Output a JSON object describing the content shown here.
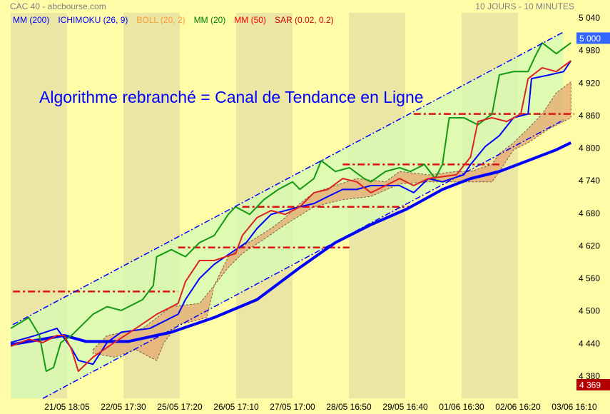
{
  "header": {
    "title": "CAC 40 - abcbourse.com",
    "period": "10 JOURS - 10 MINUTES"
  },
  "legend": [
    {
      "label": "MM (200)",
      "color": "#0000ff"
    },
    {
      "label": "ICHIMOKU (26, 9)",
      "color": "#0000ff"
    },
    {
      "label": "BOLL (20, 2)",
      "color": "#ff9933"
    },
    {
      "label": "MM (20)",
      "color": "#008000"
    },
    {
      "label": "MM (50)",
      "color": "#ff0000"
    },
    {
      "label": "SAR (0.02, 0.2)",
      "color": "#cc0000"
    }
  ],
  "chart_data": {
    "type": "line",
    "annotation": "Algorithme rebranché = Canal de Tendance en Ligne",
    "annotation_color": "#0000ff",
    "xlabels": [
      "21/05 18:05",
      "22/05 17:30",
      "25/05 17:20",
      "26/05 17:10",
      "27/05 17:00",
      "28/05 16:50",
      "29/05 16:40",
      "01/06 16:30",
      "02/06 16:20",
      "03/06 16:10"
    ],
    "yticks": [
      5040,
      4980,
      4920,
      4860,
      4800,
      4740,
      4680,
      4620,
      4560,
      4500,
      4440,
      4380
    ],
    "ylim": [
      4340,
      5060
    ],
    "last_price": {
      "label": "5 000",
      "value": 5000,
      "color": "#3366ff"
    },
    "low_price": {
      "label": "4 369",
      "value": 4369,
      "color": "#b30000"
    },
    "channel": {
      "upper": [
        [
          0.04,
          4475
        ],
        [
          9.81,
          5014
        ]
      ],
      "lower": [
        [
          0.57,
          4339
        ],
        [
          9.81,
          4852
        ]
      ],
      "fill": "#d4fbb4",
      "line_color": "#0000ff"
    },
    "levels": [
      {
        "from": 0.04,
        "to": 2.97,
        "value": 4536
      },
      {
        "from": 2.97,
        "to": 6.01,
        "value": 4617
      },
      {
        "from": 4.11,
        "to": 7.09,
        "value": 4692
      },
      {
        "from": 5.89,
        "to": 8.67,
        "value": 4770
      },
      {
        "from": 7.15,
        "to": 10.0,
        "value": 4863
      }
    ],
    "cloud": {
      "upper": [
        [
          1.46,
          4429
        ],
        [
          1.71,
          4455
        ],
        [
          2.34,
          4468
        ],
        [
          2.85,
          4508
        ],
        [
          3.35,
          4514
        ],
        [
          3.61,
          4547
        ],
        [
          3.86,
          4600
        ],
        [
          4.11,
          4619
        ],
        [
          4.62,
          4652
        ],
        [
          4.87,
          4672
        ],
        [
          5.13,
          4698
        ],
        [
          5.38,
          4718
        ],
        [
          5.76,
          4731
        ],
        [
          6.14,
          4744
        ],
        [
          6.65,
          4738
        ],
        [
          6.9,
          4757
        ],
        [
          7.41,
          4751
        ],
        [
          7.91,
          4757
        ],
        [
          8.16,
          4757
        ],
        [
          8.54,
          4770
        ],
        [
          8.67,
          4790
        ],
        [
          8.92,
          4810
        ],
        [
          9.18,
          4836
        ],
        [
          9.43,
          4863
        ],
        [
          9.68,
          4902
        ],
        [
          9.94,
          4922
        ]
      ],
      "lower": [
        [
          1.46,
          4422
        ],
        [
          1.84,
          4415
        ],
        [
          2.22,
          4429
        ],
        [
          2.47,
          4415
        ],
        [
          2.59,
          4409
        ],
        [
          2.72,
          4442
        ],
        [
          2.97,
          4475
        ],
        [
          3.23,
          4481
        ],
        [
          3.48,
          4488
        ],
        [
          3.61,
          4547
        ],
        [
          3.86,
          4580
        ],
        [
          4.11,
          4606
        ],
        [
          4.49,
          4632
        ],
        [
          4.87,
          4659
        ],
        [
          5.38,
          4692
        ],
        [
          5.89,
          4705
        ],
        [
          6.39,
          4711
        ],
        [
          6.9,
          4734
        ],
        [
          7.41,
          4738
        ],
        [
          7.91,
          4738
        ],
        [
          8.16,
          4738
        ],
        [
          8.54,
          4738
        ],
        [
          8.67,
          4757
        ],
        [
          8.92,
          4797
        ],
        [
          9.18,
          4810
        ],
        [
          9.56,
          4836
        ],
        [
          9.94,
          4856
        ]
      ],
      "fill": "#e8a870"
    },
    "series": [
      {
        "name": "MM (200)",
        "color": "#0000ff",
        "width": 4,
        "points": [
          [
            0,
            4438
          ],
          [
            0.95,
            4455
          ],
          [
            1.33,
            4444
          ],
          [
            2.09,
            4444
          ],
          [
            2.85,
            4461
          ],
          [
            3.61,
            4488
          ],
          [
            4.37,
            4521
          ],
          [
            5.13,
            4580
          ],
          [
            5.76,
            4626
          ],
          [
            6.39,
            4659
          ],
          [
            7.03,
            4688
          ],
          [
            7.66,
            4724
          ],
          [
            8.16,
            4744
          ],
          [
            8.67,
            4757
          ],
          [
            9.18,
            4777
          ],
          [
            9.68,
            4797
          ],
          [
            9.94,
            4810
          ]
        ]
      },
      {
        "name": "ICHIMOKU (26, 9)",
        "color": "#0000ff",
        "width": 2,
        "points": [
          [
            0,
            4442
          ],
          [
            0.44,
            4455
          ],
          [
            0.82,
            4468
          ],
          [
            1.08,
            4431
          ],
          [
            1.2,
            4409
          ],
          [
            1.46,
            4402
          ],
          [
            1.71,
            4442
          ],
          [
            1.96,
            4461
          ],
          [
            2.47,
            4468
          ],
          [
            2.97,
            4494
          ],
          [
            3.1,
            4521
          ],
          [
            3.35,
            4560
          ],
          [
            3.61,
            4586
          ],
          [
            3.99,
            4613
          ],
          [
            4.18,
            4626
          ],
          [
            4.37,
            4652
          ],
          [
            4.62,
            4678
          ],
          [
            5.13,
            4692
          ],
          [
            5.38,
            4698
          ],
          [
            5.63,
            4711
          ],
          [
            5.89,
            4724
          ],
          [
            6.14,
            4724
          ],
          [
            6.39,
            4731
          ],
          [
            6.9,
            4731
          ],
          [
            7.15,
            4718
          ],
          [
            7.41,
            4744
          ],
          [
            7.66,
            4738
          ],
          [
            8.04,
            4751
          ],
          [
            8.16,
            4770
          ],
          [
            8.42,
            4803
          ],
          [
            8.67,
            4823
          ],
          [
            8.92,
            4856
          ],
          [
            9.18,
            4863
          ],
          [
            9.24,
            4928
          ],
          [
            9.56,
            4935
          ],
          [
            9.81,
            4941
          ],
          [
            9.94,
            4961
          ]
        ]
      },
      {
        "name": "MM (20)",
        "color": "#119911",
        "width": 2,
        "points": [
          [
            0,
            4468
          ],
          [
            0.32,
            4488
          ],
          [
            0.51,
            4455
          ],
          [
            0.63,
            4389
          ],
          [
            0.76,
            4396
          ],
          [
            0.89,
            4442
          ],
          [
            1.08,
            4455
          ],
          [
            1.46,
            4494
          ],
          [
            1.71,
            4508
          ],
          [
            1.96,
            4501
          ],
          [
            2.34,
            4521
          ],
          [
            2.53,
            4547
          ],
          [
            2.59,
            4600
          ],
          [
            2.85,
            4613
          ],
          [
            3.1,
            4600
          ],
          [
            3.35,
            4626
          ],
          [
            3.61,
            4639
          ],
          [
            3.86,
            4678
          ],
          [
            3.99,
            4692
          ],
          [
            4.24,
            4678
          ],
          [
            4.49,
            4705
          ],
          [
            4.75,
            4724
          ],
          [
            5.0,
            4738
          ],
          [
            5.13,
            4724
          ],
          [
            5.38,
            4744
          ],
          [
            5.51,
            4777
          ],
          [
            5.76,
            4757
          ],
          [
            6.01,
            4764
          ],
          [
            6.27,
            4744
          ],
          [
            6.39,
            4738
          ],
          [
            6.65,
            4757
          ],
          [
            6.9,
            4764
          ],
          [
            7.09,
            4757
          ],
          [
            7.34,
            4770
          ],
          [
            7.53,
            4744
          ],
          [
            7.66,
            4770
          ],
          [
            7.78,
            4856
          ],
          [
            8.04,
            4856
          ],
          [
            8.29,
            4843
          ],
          [
            8.54,
            4863
          ],
          [
            8.67,
            4935
          ],
          [
            8.92,
            4941
          ],
          [
            9.18,
            4941
          ],
          [
            9.3,
            4968
          ],
          [
            9.43,
            4994
          ],
          [
            9.68,
            4974
          ],
          [
            9.94,
            4994
          ]
        ]
      },
      {
        "name": "MM (50)",
        "color": "#dd2222",
        "width": 2,
        "points": [
          [
            0,
            4435
          ],
          [
            0.32,
            4448
          ],
          [
            0.57,
            4442
          ],
          [
            0.82,
            4455
          ],
          [
            0.95,
            4455
          ],
          [
            1.08,
            4429
          ],
          [
            1.2,
            4389
          ],
          [
            1.46,
            4415
          ],
          [
            1.84,
            4442
          ],
          [
            2.22,
            4468
          ],
          [
            2.59,
            4494
          ],
          [
            2.97,
            4514
          ],
          [
            3.1,
            4554
          ],
          [
            3.35,
            4593
          ],
          [
            3.61,
            4593
          ],
          [
            3.99,
            4606
          ],
          [
            4.11,
            4639
          ],
          [
            4.37,
            4672
          ],
          [
            4.62,
            4685
          ],
          [
            4.87,
            4678
          ],
          [
            5.13,
            4692
          ],
          [
            5.38,
            4718
          ],
          [
            5.63,
            4724
          ],
          [
            5.89,
            4744
          ],
          [
            6.14,
            4738
          ],
          [
            6.39,
            4718
          ],
          [
            6.65,
            4731
          ],
          [
            6.9,
            4744
          ],
          [
            7.15,
            4731
          ],
          [
            7.41,
            4744
          ],
          [
            7.91,
            4751
          ],
          [
            8.16,
            4784
          ],
          [
            8.29,
            4849
          ],
          [
            8.54,
            4856
          ],
          [
            8.8,
            4849
          ],
          [
            9.05,
            4863
          ],
          [
            9.18,
            4928
          ],
          [
            9.43,
            4948
          ],
          [
            9.68,
            4941
          ],
          [
            9.94,
            4961
          ]
        ]
      }
    ]
  }
}
